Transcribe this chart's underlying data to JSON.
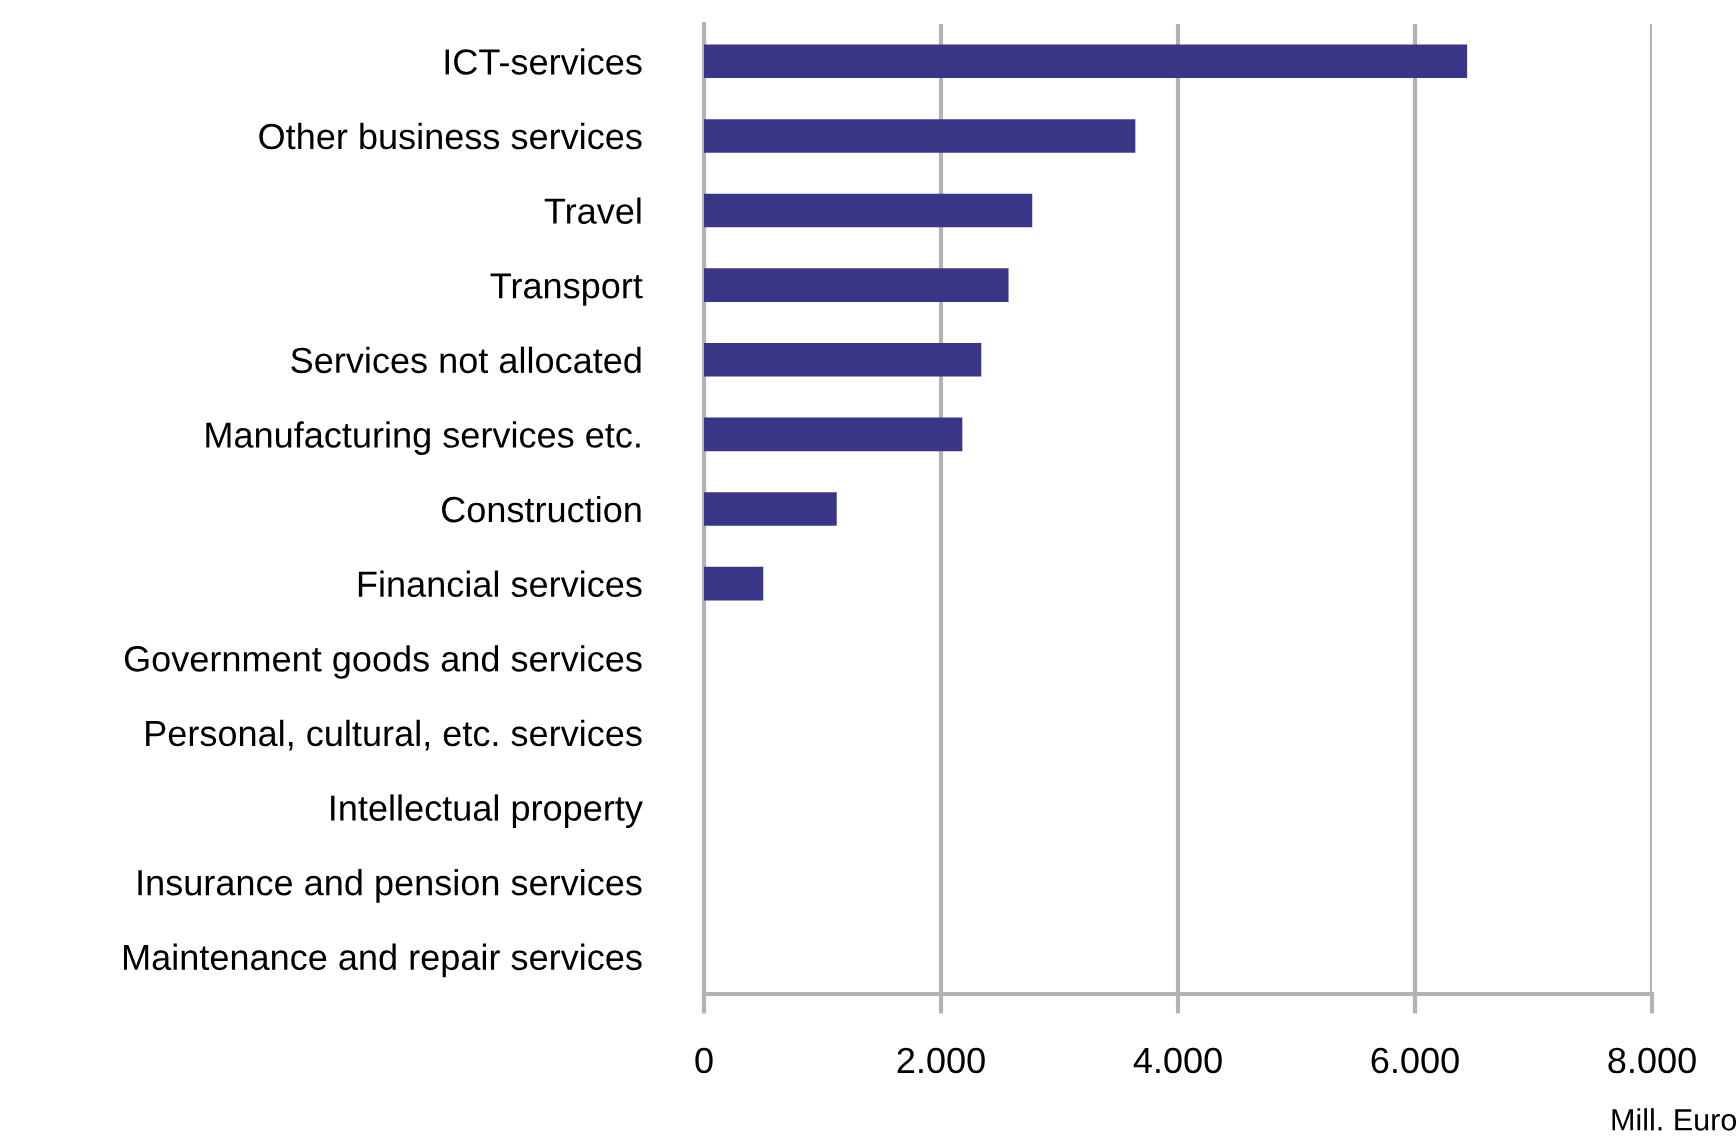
{
  "chart_data": {
    "type": "bar",
    "orientation": "horizontal",
    "xlabel": "Mill. Euro",
    "categories": [
      "ICT-services",
      "Other business services",
      "Travel",
      "Transport",
      "Services not allocated",
      "Manufacturing services etc.",
      "Construction",
      "Financial services",
      "Government goods and services",
      "Personal, cultural, etc. services",
      "Intellectual property",
      "Insurance and pension services",
      "Maintenance and repair services"
    ],
    "values": [
      6440,
      3640,
      2770,
      2570,
      2340,
      2180,
      1120,
      500,
      0,
      0,
      0,
      0,
      0
    ],
    "color": "#3a3687",
    "xlim": [
      0,
      8000
    ],
    "xticks": [
      0,
      {
        "value": 2000,
        "label": "2.000"
      },
      {
        "value": 4000,
        "label": "4.000"
      },
      {
        "value": 6000,
        "label": "6.000"
      },
      {
        "value": 8000,
        "label": "8.000"
      }
    ],
    "grid": "x"
  }
}
